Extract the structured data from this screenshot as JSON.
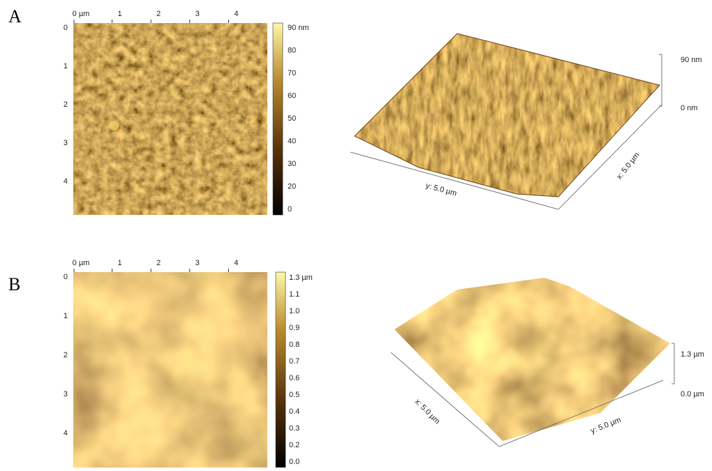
{
  "panels": [
    {
      "label": "A",
      "x_ticks": [
        "0 µm",
        "1",
        "2",
        "3",
        "4"
      ],
      "y_ticks": [
        "0",
        "1",
        "2",
        "3",
        "4"
      ],
      "colorbar_ticks": [
        "90 nm",
        "80",
        "70",
        "60",
        "50",
        "40",
        "30",
        "20",
        "0"
      ],
      "z_labels": [
        "90 nm",
        "0 nm"
      ],
      "axis_labels": [
        "y: 5.0 µm",
        "x: 5.0 µm"
      ]
    },
    {
      "label": "B",
      "x_ticks": [
        "0 µm",
        "1",
        "2",
        "3",
        "4"
      ],
      "y_ticks": [
        "0",
        "1",
        "2",
        "3",
        "4"
      ],
      "colorbar_ticks": [
        "1.3 µm",
        "1.1",
        "1.0",
        "0.9",
        "0.8",
        "0.7",
        "0.6",
        "0.5",
        "0.4",
        "0.3",
        "0.2",
        "0.0"
      ],
      "z_labels": [
        "1.3 µm",
        "0.0 µm"
      ],
      "axis_labels": [
        "x: 5.0 µm",
        "y: 5.0 µm"
      ]
    }
  ]
}
